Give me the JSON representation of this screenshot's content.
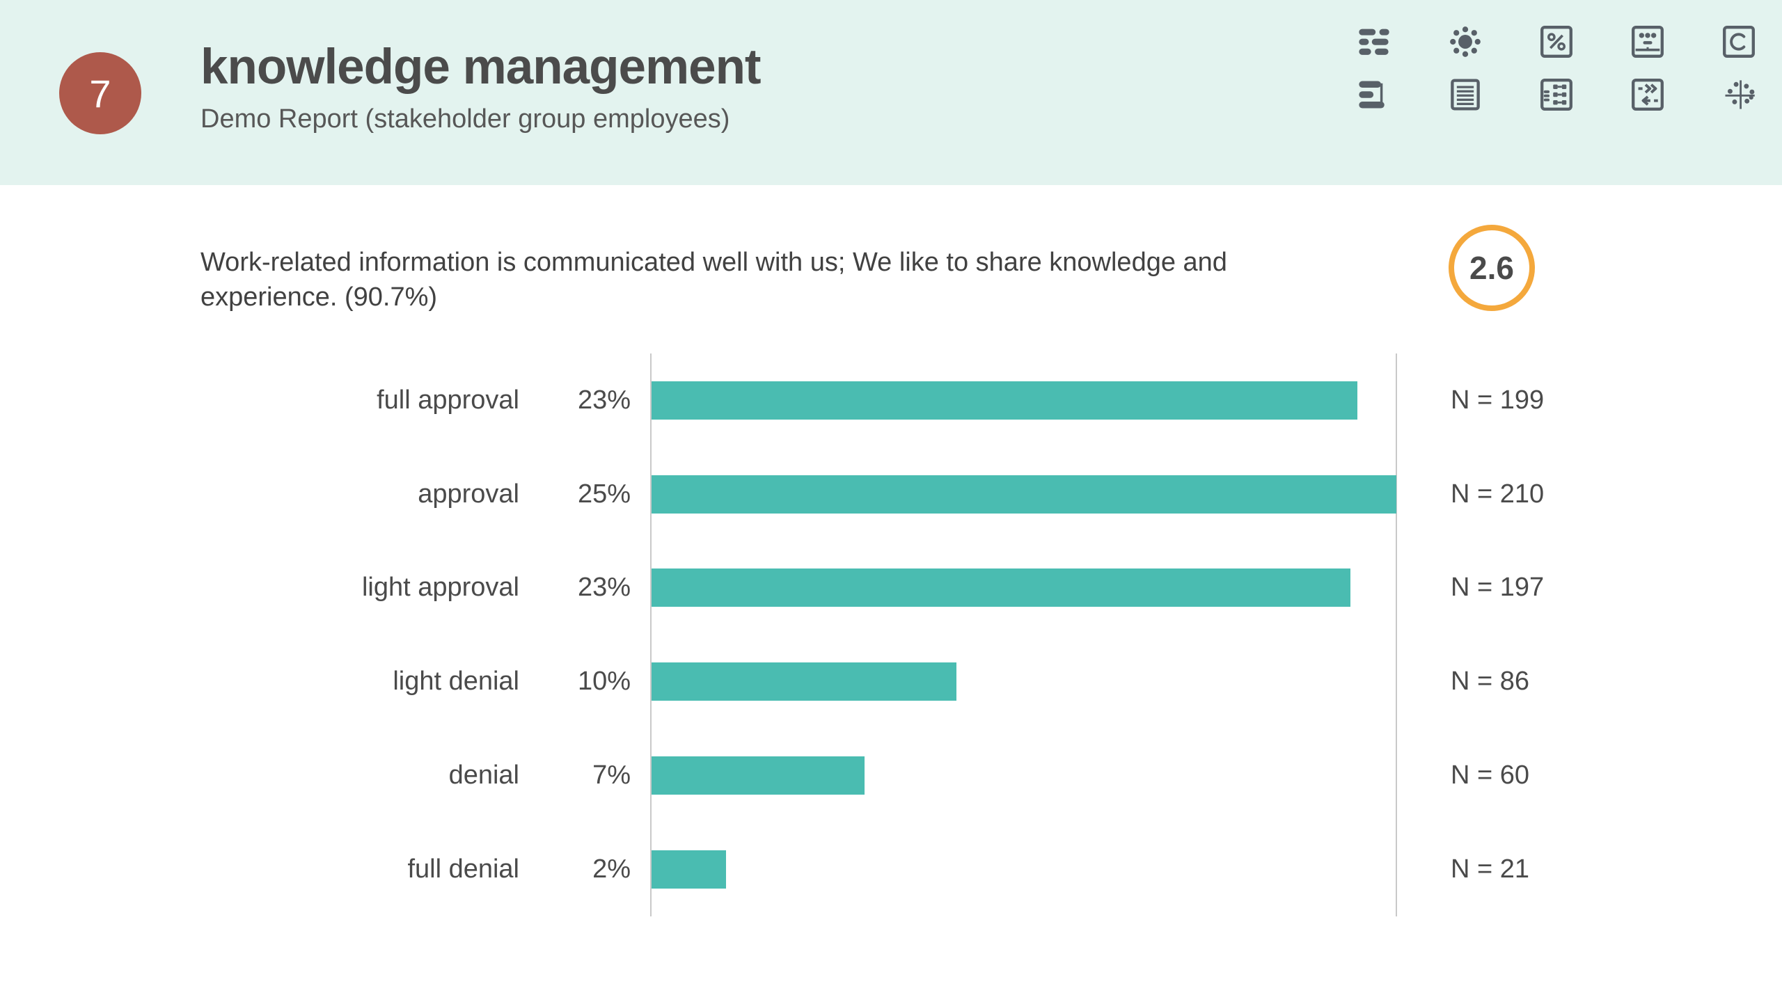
{
  "header": {
    "section_number": "7",
    "title": "knowledge management",
    "subtitle": "Demo Report (stakeholder group employees)",
    "colors": {
      "background": "#e3f3ef",
      "number_badge": "#ae594b",
      "icon": "#586068"
    },
    "toolbar_icons": [
      "segments-icon",
      "cluster-icon",
      "percent-box-icon",
      "average-box-icon",
      "c-box-icon",
      "horizontal-bars-icon",
      "document-icon",
      "matrix-icon",
      "compare-arrows-icon",
      "scatter-icon"
    ]
  },
  "question": {
    "text": "Work-related information is communicated well with us; We like to share knowledge and experience. (90.7%)",
    "score": "2.6",
    "score_ring_color": "#f4a83c"
  },
  "chart_data": {
    "type": "bar",
    "orientation": "horizontal",
    "title": "",
    "xlabel": "",
    "ylabel": "",
    "categories": [
      "full approval",
      "approval",
      "light approval",
      "light denial",
      "denial",
      "full denial"
    ],
    "series": [
      {
        "name": "percent",
        "values": [
          23,
          25,
          23,
          10,
          7,
          2
        ]
      },
      {
        "name": "N",
        "values": [
          199,
          210,
          197,
          86,
          60,
          21
        ]
      }
    ],
    "percent_labels": [
      "23%",
      "25%",
      "23%",
      "10%",
      "7%",
      "2%"
    ],
    "n_labels": [
      "N = 199",
      "N = 210",
      "N = 197",
      "N = 86",
      "N = 60",
      "N = 21"
    ],
    "bar_color": "#4abcb1",
    "axis_color": "#c9c9c9",
    "grid": false,
    "legend": "none",
    "layout_hint": "bar lengths proportional to N; longest bar (approval, N = 210) spans full axis width between the two vertical axis lines"
  }
}
